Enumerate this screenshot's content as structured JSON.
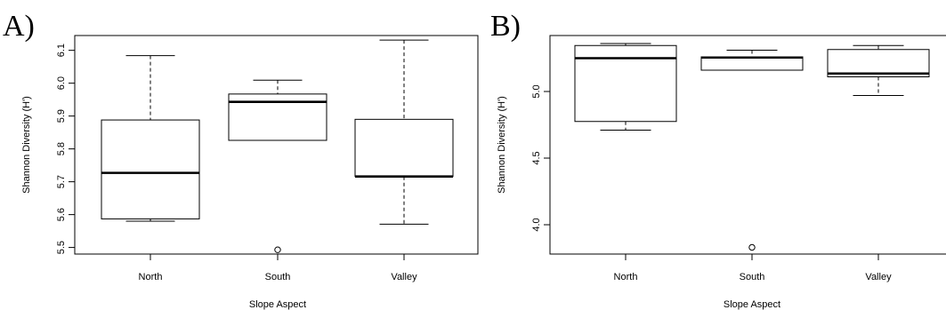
{
  "figure": {
    "background": "#ffffff",
    "ink": "#000000"
  },
  "chart_data": [
    {
      "panel_label": "A)",
      "type": "box",
      "xlabel": "Slope Aspect",
      "ylabel": "Shannon Diversity (H')",
      "ylim": [
        5.48,
        6.145
      ],
      "yticks": [
        5.5,
        5.6,
        5.7,
        5.8,
        5.9,
        6.0,
        6.1
      ],
      "ytick_labels": [
        "5.5",
        "5.6",
        "5.7",
        "5.8",
        "5.9",
        "6.0",
        "6.1"
      ],
      "categories": [
        "North",
        "South",
        "Valley"
      ],
      "boxes": [
        {
          "category": "North",
          "whisker_low": 5.58,
          "q1": 5.587,
          "median": 5.727,
          "q3": 5.888,
          "whisker_high": 6.084,
          "outliers": []
        },
        {
          "category": "South",
          "whisker_low": 5.826,
          "q1": 5.826,
          "median": 5.943,
          "q3": 5.967,
          "whisker_high": 6.009,
          "outliers": [
            5.493
          ]
        },
        {
          "category": "Valley",
          "whisker_low": 5.571,
          "q1": 5.716,
          "median": 5.716,
          "q3": 5.89,
          "whisker_high": 6.131,
          "outliers": []
        }
      ],
      "grid": false
    },
    {
      "panel_label": "B)",
      "type": "box",
      "xlabel": "Slope Aspect",
      "ylabel": "Shannon Diversity (H')",
      "ylim": [
        3.78,
        5.42
      ],
      "yticks": [
        4.0,
        4.5,
        5.0
      ],
      "ytick_labels": [
        "4.0",
        "4.5",
        "5.0"
      ],
      "categories": [
        "North",
        "South",
        "Valley"
      ],
      "boxes": [
        {
          "category": "North",
          "whisker_low": 4.71,
          "q1": 4.775,
          "median": 5.25,
          "q3": 5.345,
          "whisker_high": 5.36,
          "outliers": []
        },
        {
          "category": "South",
          "whisker_low": 5.16,
          "q1": 5.16,
          "median": 5.255,
          "q3": 5.26,
          "whisker_high": 5.31,
          "outliers": [
            3.83
          ]
        },
        {
          "category": "Valley",
          "whisker_low": 4.97,
          "q1": 5.11,
          "median": 5.135,
          "q3": 5.315,
          "whisker_high": 5.345,
          "outliers": []
        }
      ],
      "grid": false
    }
  ]
}
